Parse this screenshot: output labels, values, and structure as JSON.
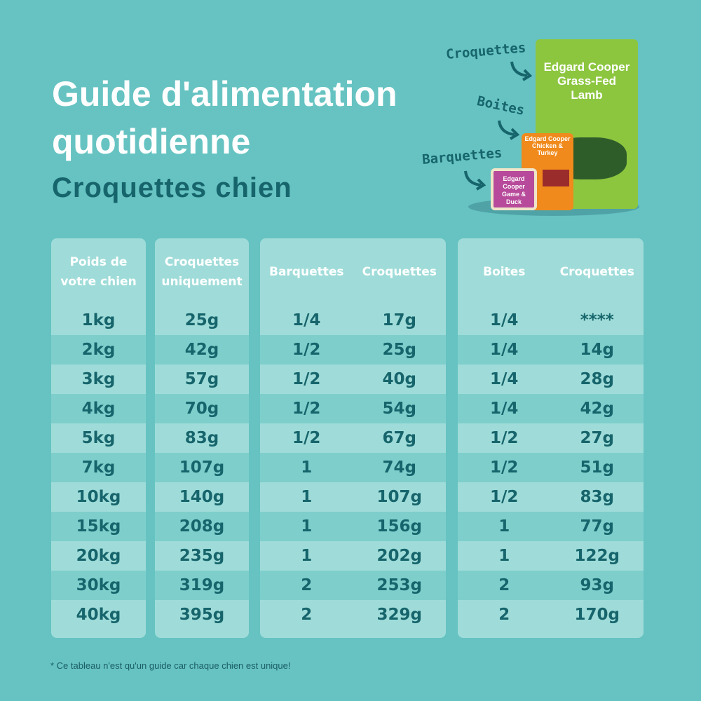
{
  "title": "Guide d'alimentation quotidienne",
  "subtitle": "Croquettes chien",
  "product_labels": {
    "kibble": "Croquettes",
    "cans": "Boites",
    "trays": "Barquettes"
  },
  "product_images": {
    "kibble_bag": "Edgard Cooper Grass-Fed Lamb",
    "can": "Edgard Cooper Chicken & Turkey",
    "tray": "Edgard Cooper Game & Duck"
  },
  "tables": {
    "weight": {
      "header": "Poids de votre chien",
      "rows": [
        "1kg",
        "2kg",
        "3kg",
        "4kg",
        "5kg",
        "7kg",
        "10kg",
        "15kg",
        "20kg",
        "30kg",
        "40kg"
      ]
    },
    "kibble_only": {
      "header": "Croquettes uniquement",
      "rows": [
        "25g",
        "42g",
        "57g",
        "70g",
        "83g",
        "107g",
        "140g",
        "208g",
        "235g",
        "319g",
        "395g"
      ]
    },
    "trays": {
      "headers": [
        "Barquettes",
        "Croquettes"
      ],
      "rows": [
        [
          "1/4",
          "17g"
        ],
        [
          "1/2",
          "25g"
        ],
        [
          "1/2",
          "40g"
        ],
        [
          "1/2",
          "54g"
        ],
        [
          "1/2",
          "67g"
        ],
        [
          "1",
          "74g"
        ],
        [
          "1",
          "107g"
        ],
        [
          "1",
          "156g"
        ],
        [
          "1",
          "202g"
        ],
        [
          "2",
          "253g"
        ],
        [
          "2",
          "329g"
        ]
      ]
    },
    "cans": {
      "headers": [
        "Boites",
        "Croquettes"
      ],
      "rows": [
        [
          "1/4",
          "****"
        ],
        [
          "1/4",
          "14g"
        ],
        [
          "1/4",
          "28g"
        ],
        [
          "1/4",
          "42g"
        ],
        [
          "1/2",
          "27g"
        ],
        [
          "1/2",
          "51g"
        ],
        [
          "1/2",
          "83g"
        ],
        [
          "1",
          "77g"
        ],
        [
          "1",
          "122g"
        ],
        [
          "2",
          "93g"
        ],
        [
          "2",
          "170g"
        ]
      ]
    }
  },
  "footnote": "* Ce tableau n'est qu'un guide car chaque chien est unique!"
}
